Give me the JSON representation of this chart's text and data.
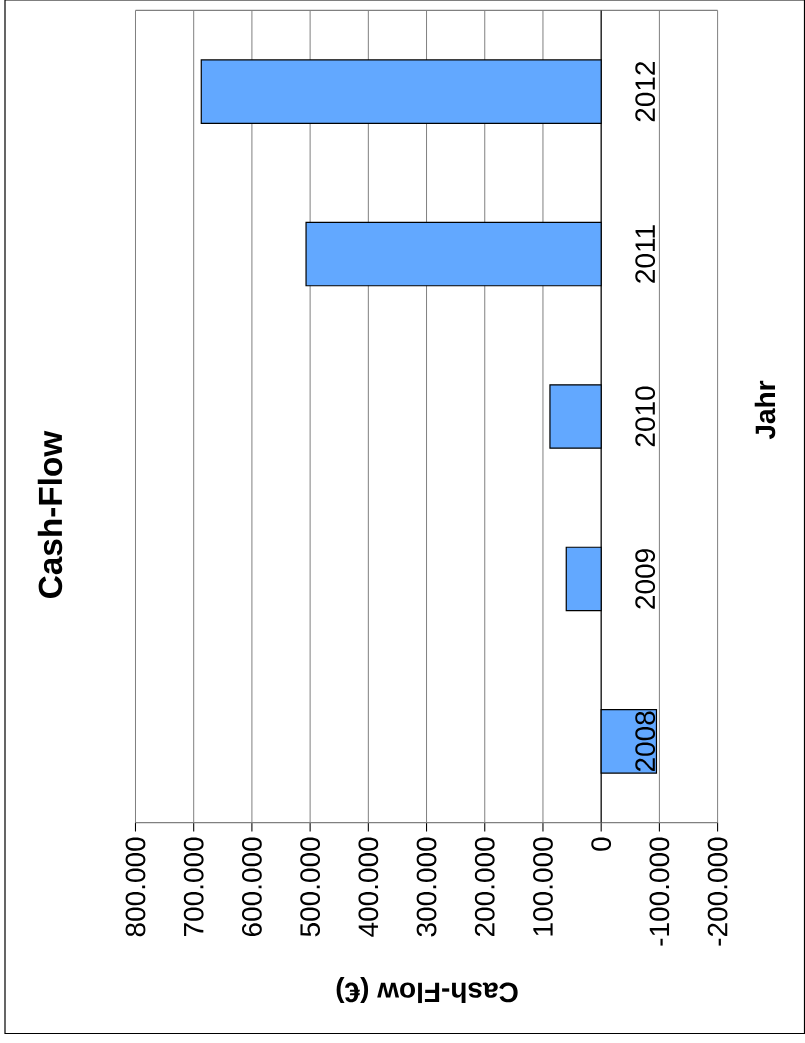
{
  "chart_data": {
    "type": "bar",
    "orientation": "horizontal",
    "title": "Cash-Flow",
    "xlabel": "Cash-Flow (€)",
    "ylabel": "Jahr",
    "categories": [
      "2012",
      "2011",
      "2010",
      "2009",
      "2008"
    ],
    "values": [
      687000,
      507000,
      88000,
      60000,
      -95000
    ],
    "color": "#62a8ff",
    "xlim": [
      800000,
      -200000
    ],
    "xticks": [
      {
        "value": 800000,
        "label": "800.000"
      },
      {
        "value": 700000,
        "label": "700.000"
      },
      {
        "value": 600000,
        "label": "600.000"
      },
      {
        "value": 500000,
        "label": "500.000"
      },
      {
        "value": 400000,
        "label": "400.000"
      },
      {
        "value": 300000,
        "label": "300.000"
      },
      {
        "value": 200000,
        "label": "200.000"
      },
      {
        "value": 100000,
        "label": "100.000"
      },
      0,
      {
        "value": -100000,
        "label": "-100.000"
      },
      {
        "value": -200000,
        "label": "-200.000"
      }
    ],
    "grid": "x"
  }
}
